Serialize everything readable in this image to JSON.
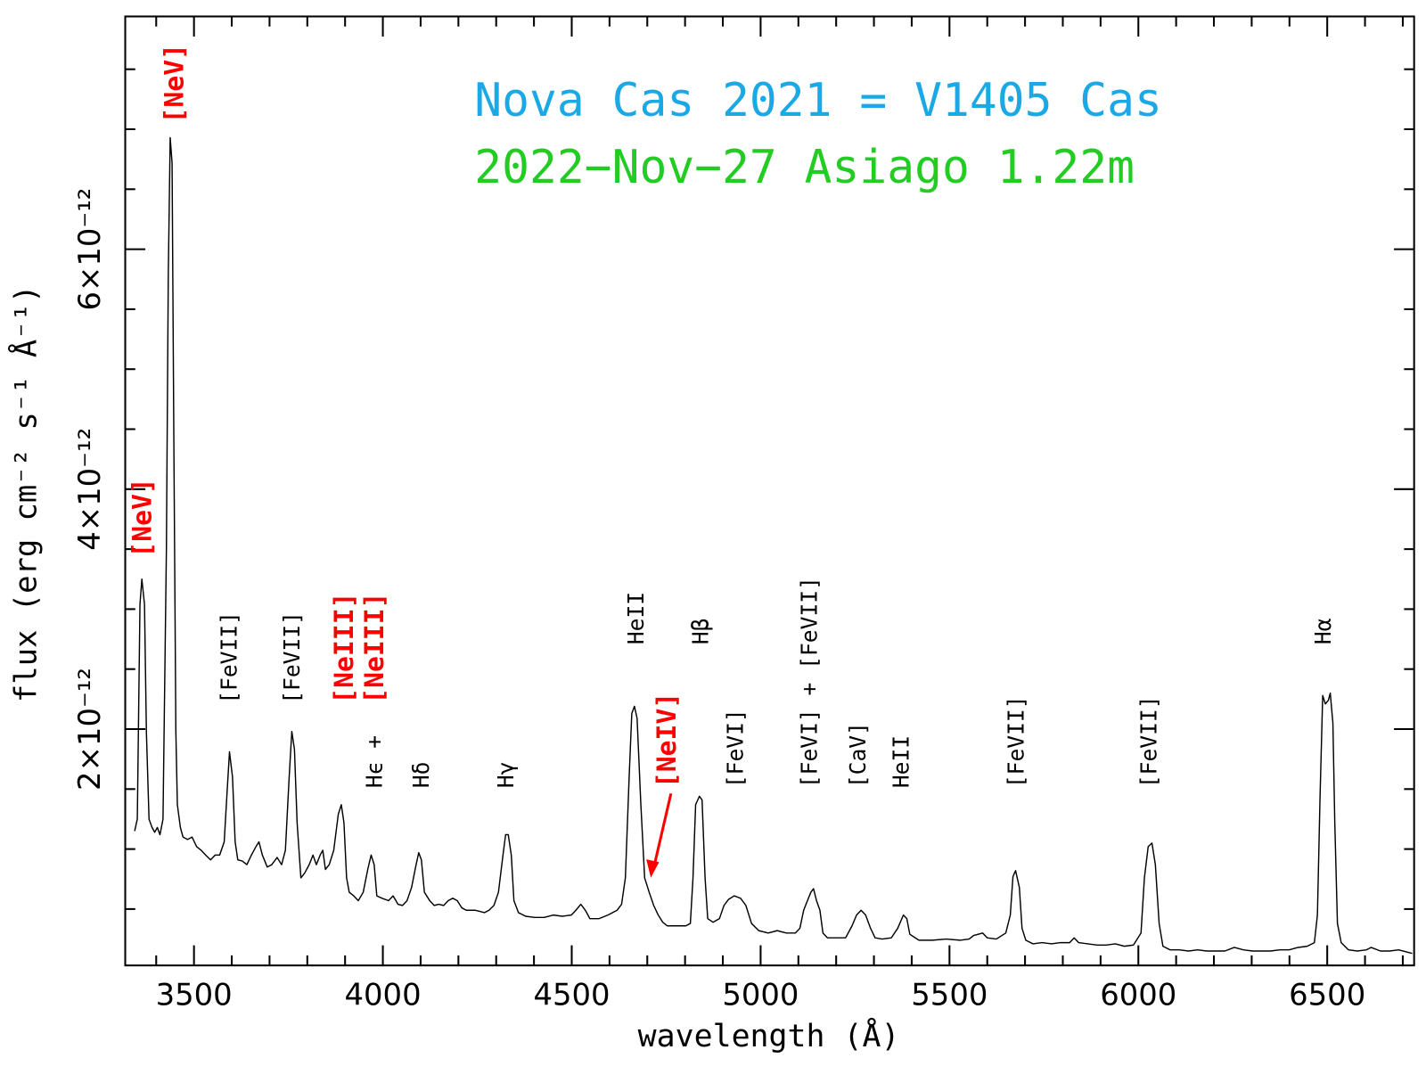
{
  "chart_data": {
    "type": "line",
    "title": "Nova Cas 2021 = V1405 Cas",
    "title_color": "#1ba9e6",
    "subtitle": "2022−Nov−27  Asiago 1.22m",
    "subtitle_color": "#22cc22",
    "xlabel": "wavelength (Å)",
    "ylabel": "flux (erg cm⁻² s⁻¹ Å⁻¹)",
    "color": "#000000",
    "xlim": [
      3318,
      6730
    ],
    "ylim": [
      3e-14,
      7.94e-12
    ],
    "xticks": [
      3500,
      4000,
      4500,
      5000,
      5500,
      6000,
      6500
    ],
    "xminorticks": [
      3400,
      3600,
      3700,
      3800,
      3900,
      4100,
      4200,
      4300,
      4400,
      4600,
      4700,
      4800,
      4900,
      5100,
      5200,
      5300,
      5400,
      5600,
      5700,
      5800,
      5900,
      6100,
      6200,
      6300,
      6400,
      6600,
      6700
    ],
    "yticks": [
      {
        "value": 2e-12,
        "label": "2×10⁻¹²"
      },
      {
        "value": 4e-12,
        "label": "4×10⁻¹²"
      },
      {
        "value": 6e-12,
        "label": "6×10⁻¹²"
      }
    ],
    "yminorticks": [
      5e-13,
      1e-12,
      1.5e-12,
      2.5e-12,
      3e-12,
      3.5e-12,
      4.5e-12,
      5e-12,
      5.5e-12,
      6.5e-12,
      7e-12,
      7.5e-12
    ],
    "annotations": [
      {
        "text": "[NeV]",
        "color": "#ff0000"
      },
      {
        "text": "[NeV]",
        "color": "#ff0000"
      },
      {
        "text": "[FeVII]",
        "color": "#000000"
      },
      {
        "text": "[FeVII]",
        "color": "#000000"
      },
      {
        "text": "[NeIII]",
        "color": "#ff0000"
      },
      {
        "text": "[NeIII]",
        "color": "#ff0000"
      },
      {
        "text": "Hϵ +",
        "color": "#000000"
      },
      {
        "text": "Hδ",
        "color": "#000000"
      },
      {
        "text": "Hγ",
        "color": "#000000"
      },
      {
        "text": "HeII",
        "color": "#000000"
      },
      {
        "text": "[NeIV]",
        "color": "#ff0000"
      },
      {
        "text": "Hβ",
        "color": "#000000"
      },
      {
        "text": "[FeVI]",
        "color": "#000000"
      },
      {
        "text": "[FeVI] + [FeVII]",
        "color": "#000000"
      },
      {
        "text": "[CaV]",
        "color": "#000000"
      },
      {
        "text": "HeII",
        "color": "#000000"
      },
      {
        "text": "[FeVII]",
        "color": "#000000"
      },
      {
        "text": "[FeVII]",
        "color": "#000000"
      },
      {
        "text": "Hα",
        "color": "#000000"
      }
    ],
    "x": [
      3343,
      3350,
      3357,
      3362,
      3369,
      3374,
      3381,
      3389,
      3396,
      3403,
      3410,
      3418,
      3427,
      3432,
      3437,
      3442,
      3447,
      3452,
      3456,
      3464,
      3471,
      3483,
      3495,
      3507,
      3519,
      3531,
      3544,
      3556,
      3568,
      3580,
      3587,
      3594,
      3602,
      3609,
      3616,
      3628,
      3640,
      3652,
      3664,
      3672,
      3681,
      3694,
      3706,
      3720,
      3732,
      3742,
      3752,
      3759,
      3766,
      3773,
      3783,
      3793,
      3805,
      3815,
      3824,
      3834,
      3841,
      3848,
      3858,
      3870,
      3882,
      3890,
      3897,
      3904,
      3911,
      3923,
      3935,
      3948,
      3960,
      3969,
      3977,
      3984,
      3998,
      4015,
      4027,
      4040,
      4052,
      4064,
      4076,
      4088,
      4095,
      4102,
      4110,
      4124,
      4136,
      4148,
      4161,
      4173,
      4185,
      4197,
      4209,
      4221,
      4233,
      4245,
      4257,
      4269,
      4281,
      4294,
      4306,
      4318,
      4325,
      4332,
      4340,
      4347,
      4359,
      4378,
      4402,
      4427,
      4451,
      4475,
      4499,
      4511,
      4524,
      4536,
      4548,
      4572,
      4596,
      4620,
      4632,
      4642,
      4652,
      4659,
      4666,
      4673,
      4683,
      4693,
      4705,
      4717,
      4729,
      4741,
      4753,
      4778,
      4802,
      4814,
      4821,
      4828,
      4838,
      4845,
      4853,
      4860,
      4874,
      4891,
      4903,
      4915,
      4930,
      4947,
      4961,
      4976,
      4995,
      5020,
      5044,
      5068,
      5092,
      5104,
      5114,
      5124,
      5133,
      5140,
      5148,
      5157,
      5165,
      5177,
      5201,
      5225,
      5242,
      5254,
      5266,
      5278,
      5291,
      5303,
      5322,
      5346,
      5363,
      5378,
      5387,
      5395,
      5419,
      5455,
      5491,
      5528,
      5552,
      5564,
      5588,
      5600,
      5624,
      5649,
      5661,
      5668,
      5675,
      5685,
      5692,
      5702,
      5721,
      5745,
      5770,
      5794,
      5818,
      5830,
      5842,
      5866,
      5891,
      5915,
      5939,
      5963,
      5987,
      6007,
      6016,
      6026,
      6036,
      6045,
      6055,
      6065,
      6084,
      6108,
      6133,
      6157,
      6181,
      6205,
      6229,
      6254,
      6278,
      6302,
      6326,
      6350,
      6374,
      6399,
      6423,
      6447,
      6466,
      6474,
      6481,
      6488,
      6495,
      6503,
      6508,
      6515,
      6520,
      6527,
      6537,
      6556,
      6580,
      6604,
      6616,
      6641,
      6665,
      6689,
      6725
    ],
    "values": [
      1.15e-12,
      1.25e-12,
      3.04e-12,
      3.25e-12,
      3.04e-12,
      1.98e-12,
      1.25e-12,
      1.18e-12,
      1.14e-12,
      1.18e-12,
      1.12e-12,
      1.25e-12,
      3.5e-12,
      5.79e-12,
      6.93e-12,
      6.72e-12,
      4.26e-12,
      1.98e-12,
      1.37e-12,
      1.18e-12,
      1.1e-12,
      1.08e-12,
      1.1e-12,
      1.02e-12,
      9.9e-13,
      9.5e-13,
      9.1e-13,
      9.5e-13,
      9.5e-13,
      1.06e-12,
      1.44e-12,
      1.81e-12,
      1.6e-12,
      1.06e-12,
      9.1e-13,
      9e-13,
      8.7e-13,
      9.5e-13,
      1.02e-12,
      1.06e-12,
      9.5e-13,
      8.5e-13,
      8.7e-13,
      9.3e-13,
      8.7e-13,
      9.9e-13,
      1.6e-12,
      1.98e-12,
      1.83e-12,
      1.22e-12,
      7.6e-13,
      8e-13,
      8.7e-13,
      9.5e-13,
      8.7e-13,
      9.5e-13,
      9.9e-13,
      8.3e-13,
      8.7e-13,
      9.9e-13,
      1.29e-12,
      1.37e-12,
      1.22e-12,
      7.6e-13,
      6.4e-13,
      6.1e-13,
      5.7e-13,
      6.4e-13,
      8.3e-13,
      9.5e-13,
      8.7e-13,
      6.1e-13,
      5.9e-13,
      5.7e-13,
      6.1e-13,
      5.4e-13,
      5.3e-13,
      5.7e-13,
      6.8e-13,
      8.7e-13,
      9.7e-13,
      9.1e-13,
      6.4e-13,
      5.7e-13,
      5.3e-13,
      5.4e-13,
      5.3e-13,
      5.7e-13,
      5.9e-13,
      5.7e-13,
      5.1e-13,
      4.9e-13,
      4.9e-13,
      4.9e-13,
      4.8e-13,
      4.7e-13,
      4.9e-13,
      5.3e-13,
      6.4e-13,
      9.5e-13,
      1.12e-12,
      1.12e-12,
      9.5e-13,
      5.7e-13,
      4.7e-13,
      4.4e-13,
      4.3e-13,
      4.3e-13,
      4.5e-13,
      4.4e-13,
      4.5e-13,
      4.9e-13,
      5.4e-13,
      4.9e-13,
      4.2e-13,
      4.2e-13,
      4.5e-13,
      4.9e-13,
      5.4e-13,
      7.6e-13,
      1.6e-12,
      2.13e-12,
      2.19e-12,
      2.09e-12,
      1.37e-12,
      7.6e-13,
      6.4e-13,
      5.3e-13,
      4.5e-13,
      3.9e-13,
      3.6e-13,
      3.6e-13,
      3.6e-13,
      3.8e-13,
      7.6e-13,
      1.37e-12,
      1.44e-12,
      1.41e-12,
      7.6e-13,
      4.2e-13,
      3.9e-13,
      4.2e-13,
      5.3e-13,
      5.8e-13,
      6.1e-13,
      5.9e-13,
      5.3e-13,
      3.8e-13,
      3.2e-13,
      3e-13,
      3.2e-13,
      3e-13,
      3e-13,
      3.4e-13,
      4.9e-13,
      5.7e-13,
      6.4e-13,
      6.7e-13,
      5.7e-13,
      4.9e-13,
      3e-13,
      2.6e-13,
      2.6e-13,
      2.6e-13,
      3.6e-13,
      4.5e-13,
      4.9e-13,
      4.5e-13,
      3.4e-13,
      2.6e-13,
      2.5e-13,
      2.6e-13,
      3.4e-13,
      4.5e-13,
      4.2e-13,
      2.9e-13,
      2.4e-13,
      2.4e-13,
      2.5e-13,
      2.4e-13,
      2.5e-13,
      2.8e-13,
      3e-13,
      2.6e-13,
      2.5e-13,
      3e-13,
      4.5e-13,
      7.7e-13,
      8.2e-13,
      6.8e-13,
      3.4e-13,
      2.4e-13,
      2.1e-13,
      2.2e-13,
      2.1e-13,
      2.2e-13,
      2.2e-13,
      2.6e-13,
      2.2e-13,
      2.1e-13,
      2e-13,
      2e-13,
      2.1e-13,
      1.9e-13,
      2e-13,
      3e-13,
      7.6e-13,
      1.02e-12,
      1.05e-12,
      8.7e-13,
      3.8e-13,
      1.9e-13,
      1.6e-13,
      1.6e-13,
      1.5e-13,
      1.6e-13,
      1.5e-13,
      1.5e-13,
      1.5e-13,
      1.8e-13,
      1.6e-13,
      1.5e-13,
      1.5e-13,
      1.5e-13,
      1.6e-13,
      1.6e-13,
      1.8e-13,
      1.9e-13,
      2.2e-13,
      4.5e-13,
      1.44e-12,
      2.28e-12,
      2.21e-12,
      2.24e-12,
      2.3e-12,
      2.05e-12,
      1.22e-12,
      3.8e-13,
      2.2e-13,
      1.6e-13,
      1.5e-13,
      1.6e-13,
      1.8e-13,
      1.5e-13,
      1.5e-13,
      1.6e-13,
      1.3e-13
    ]
  }
}
